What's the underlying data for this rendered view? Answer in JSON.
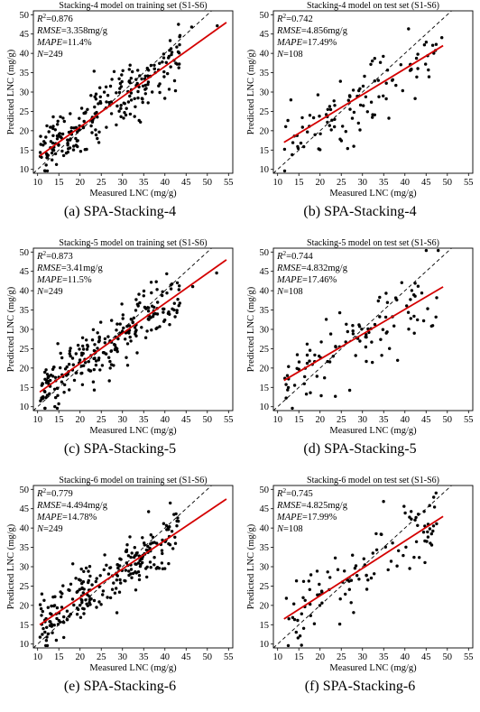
{
  "panels": [
    {
      "caption": "(a)  SPA-Stacking-4",
      "chart_data": {
        "type": "scatter",
        "title": "Stacking-4 model on training set (S1-S6)",
        "xlabel": "Measured LNC (mg/g)",
        "ylabel": "Predicted LNC (mg/g)",
        "xlim": [
          9,
          56
        ],
        "ylim": [
          9,
          51
        ],
        "xticks": [
          10,
          15,
          20,
          25,
          30,
          35,
          40,
          45,
          50,
          55
        ],
        "yticks": [
          10,
          15,
          20,
          25,
          30,
          35,
          40,
          45,
          50
        ],
        "stats": {
          "r2": "=0.876",
          "rmse": "=3.358mg/g",
          "mape": "=11.4%",
          "n": "=249"
        },
        "n": 249,
        "fit": {
          "x1": 10.5,
          "y1": 13.5,
          "x2": 54.5,
          "y2": 48
        }
      }
    },
    {
      "caption": "(b)  SPA-Stacking-4",
      "chart_data": {
        "type": "scatter",
        "title": "Stacking-4 model on test set (S1-S6)",
        "xlabel": "Measured LNC (mg/g)",
        "ylabel": "Predicted LNC (mg/g)",
        "xlim": [
          9,
          56
        ],
        "ylim": [
          9,
          51
        ],
        "xticks": [
          10,
          15,
          20,
          25,
          30,
          35,
          40,
          45,
          50,
          55
        ],
        "yticks": [
          10,
          15,
          20,
          25,
          30,
          35,
          40,
          45,
          50
        ],
        "stats": {
          "r2": "=0.742",
          "rmse": "=4.856mg/g",
          "mape": "=17.49%",
          "n": "=108"
        },
        "n": 108,
        "fit": {
          "x1": 11.5,
          "y1": 17,
          "x2": 49,
          "y2": 42
        }
      }
    },
    {
      "caption": "(c)  SPA-Stacking-5",
      "chart_data": {
        "type": "scatter",
        "title": "Stacking-5 model on training set (S1-S6)",
        "xlabel": "Measured LNC (mg/g)",
        "ylabel": "Predicted LNC (mg/g)",
        "xlim": [
          9,
          56
        ],
        "ylim": [
          9,
          51
        ],
        "xticks": [
          10,
          15,
          20,
          25,
          30,
          35,
          40,
          45,
          50,
          55
        ],
        "yticks": [
          10,
          15,
          20,
          25,
          30,
          35,
          40,
          45,
          50
        ],
        "stats": {
          "r2": "=0.873",
          "rmse": "=3.41mg/g",
          "mape": "=11.5%",
          "n": "=249"
        },
        "n": 249,
        "fit": {
          "x1": 10.5,
          "y1": 13.8,
          "x2": 54.5,
          "y2": 48
        }
      }
    },
    {
      "caption": "(d)  SPA-Stacking-5",
      "chart_data": {
        "type": "scatter",
        "title": "Stacking-5 model on test set (S1-S6)",
        "xlabel": "Measured LNC (mg/g)",
        "ylabel": "Predicted LNC (mg/g)",
        "xlim": [
          9,
          56
        ],
        "ylim": [
          9,
          51
        ],
        "xticks": [
          10,
          15,
          20,
          25,
          30,
          35,
          40,
          45,
          50,
          55
        ],
        "yticks": [
          10,
          15,
          20,
          25,
          30,
          35,
          40,
          45,
          50
        ],
        "stats": {
          "r2": "=0.744",
          "rmse": "=4.832mg/g",
          "mape": "=17.46%",
          "n": "=108"
        },
        "n": 108,
        "fit": {
          "x1": 11.5,
          "y1": 16.8,
          "x2": 49,
          "y2": 41
        }
      }
    },
    {
      "caption": "(e)  SPA-Stacking-6",
      "chart_data": {
        "type": "scatter",
        "title": "Stacking-6 model on training set (S1-S6)",
        "xlabel": "Measured LNC (mg/g)",
        "ylabel": "Predicted LNC (mg/g)",
        "xlim": [
          9,
          56
        ],
        "ylim": [
          9,
          51
        ],
        "xticks": [
          10,
          15,
          20,
          25,
          30,
          35,
          40,
          45,
          50,
          55
        ],
        "yticks": [
          10,
          15,
          20,
          25,
          30,
          35,
          40,
          45,
          50
        ],
        "stats": {
          "r2": "=0.779",
          "rmse": "=4.494mg/g",
          "mape": "=14.78%",
          "n": "=249"
        },
        "n": 249,
        "fit": {
          "x1": 10.5,
          "y1": 15,
          "x2": 54.5,
          "y2": 47.5
        }
      }
    },
    {
      "caption": "(f)  SPA-Stacking-6",
      "chart_data": {
        "type": "scatter",
        "title": "Stacking-6 model on test set (S1-S6)",
        "xlabel": "Measured LNC (mg/g)",
        "ylabel": "Predicted LNC (mg/g)",
        "xlim": [
          9,
          56
        ],
        "ylim": [
          9,
          51
        ],
        "xticks": [
          10,
          15,
          20,
          25,
          30,
          35,
          40,
          45,
          50,
          55
        ],
        "yticks": [
          10,
          15,
          20,
          25,
          30,
          35,
          40,
          45,
          50
        ],
        "stats": {
          "r2": "=0.745",
          "rmse": "=4.825mg/g",
          "mape": "=17.99%",
          "n": "=108"
        },
        "n": 108,
        "fit": {
          "x1": 11.5,
          "y1": 16.5,
          "x2": 49,
          "y2": 43
        }
      }
    }
  ],
  "labels": {
    "r2": "R",
    "r2_sup": "2",
    "rmse": "RMSE",
    "mape": "MAPE",
    "n": "N"
  },
  "colors": {
    "points": "#000000",
    "fit": "#d40000",
    "identity": "#000000"
  }
}
